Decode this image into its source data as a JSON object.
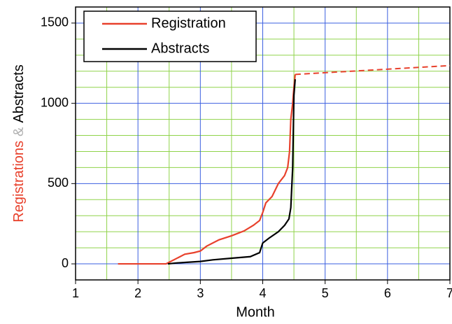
{
  "chart_data": {
    "type": "line",
    "xlabel": "Month",
    "ylabel_parts": [
      {
        "text": "Registrations",
        "color": "#e8412c"
      },
      {
        "text": "&",
        "color": "#b0b0b0"
      },
      {
        "text": "Abstracts",
        "color": "#000000"
      }
    ],
    "series": [
      {
        "name": "Registration",
        "color": "#e8412c",
        "x": [
          1.68,
          2.45,
          2.5,
          2.6,
          2.75,
          2.9,
          3.0,
          3.1,
          3.3,
          3.5,
          3.7,
          3.85,
          3.95,
          4.0,
          4.05,
          4.15,
          4.25,
          4.35,
          4.4,
          4.43,
          4.45,
          4.48,
          4.5,
          4.52
        ],
        "values": [
          0,
          0,
          10,
          30,
          60,
          70,
          80,
          110,
          150,
          175,
          205,
          240,
          270,
          320,
          380,
          420,
          500,
          550,
          600,
          700,
          900,
          1000,
          1100,
          1180
        ],
        "projection": {
          "x": [
            4.52,
            7
          ],
          "values": [
            1180,
            1235
          ],
          "dashed": true
        }
      },
      {
        "name": "Abstracts",
        "color": "#000000",
        "x": [
          2.48,
          2.6,
          2.8,
          3.0,
          3.2,
          3.5,
          3.8,
          3.95,
          4.0,
          4.1,
          4.25,
          4.35,
          4.42,
          4.45,
          4.48,
          4.5,
          4.52
        ],
        "values": [
          0,
          5,
          10,
          15,
          25,
          35,
          45,
          70,
          130,
          160,
          200,
          240,
          280,
          350,
          600,
          1050,
          1150
        ]
      }
    ],
    "xlim": [
      1,
      7
    ],
    "xticks": [
      1,
      2,
      3,
      4,
      5,
      6,
      7
    ],
    "ylim": [
      -100,
      1600
    ],
    "yticks": [
      0,
      500,
      1000,
      1500
    ],
    "x_minor_ticks": [
      1.5,
      2.5,
      3.5,
      4.5,
      5.5,
      6.5
    ],
    "y_minor_ticks": [
      -100,
      100,
      200,
      300,
      400,
      600,
      700,
      800,
      900,
      1100,
      1200,
      1300,
      1400
    ],
    "grid": true,
    "major_grid_color": "#3b5fe0",
    "minor_grid_color": "#8fd34a",
    "legend": "upper left"
  }
}
